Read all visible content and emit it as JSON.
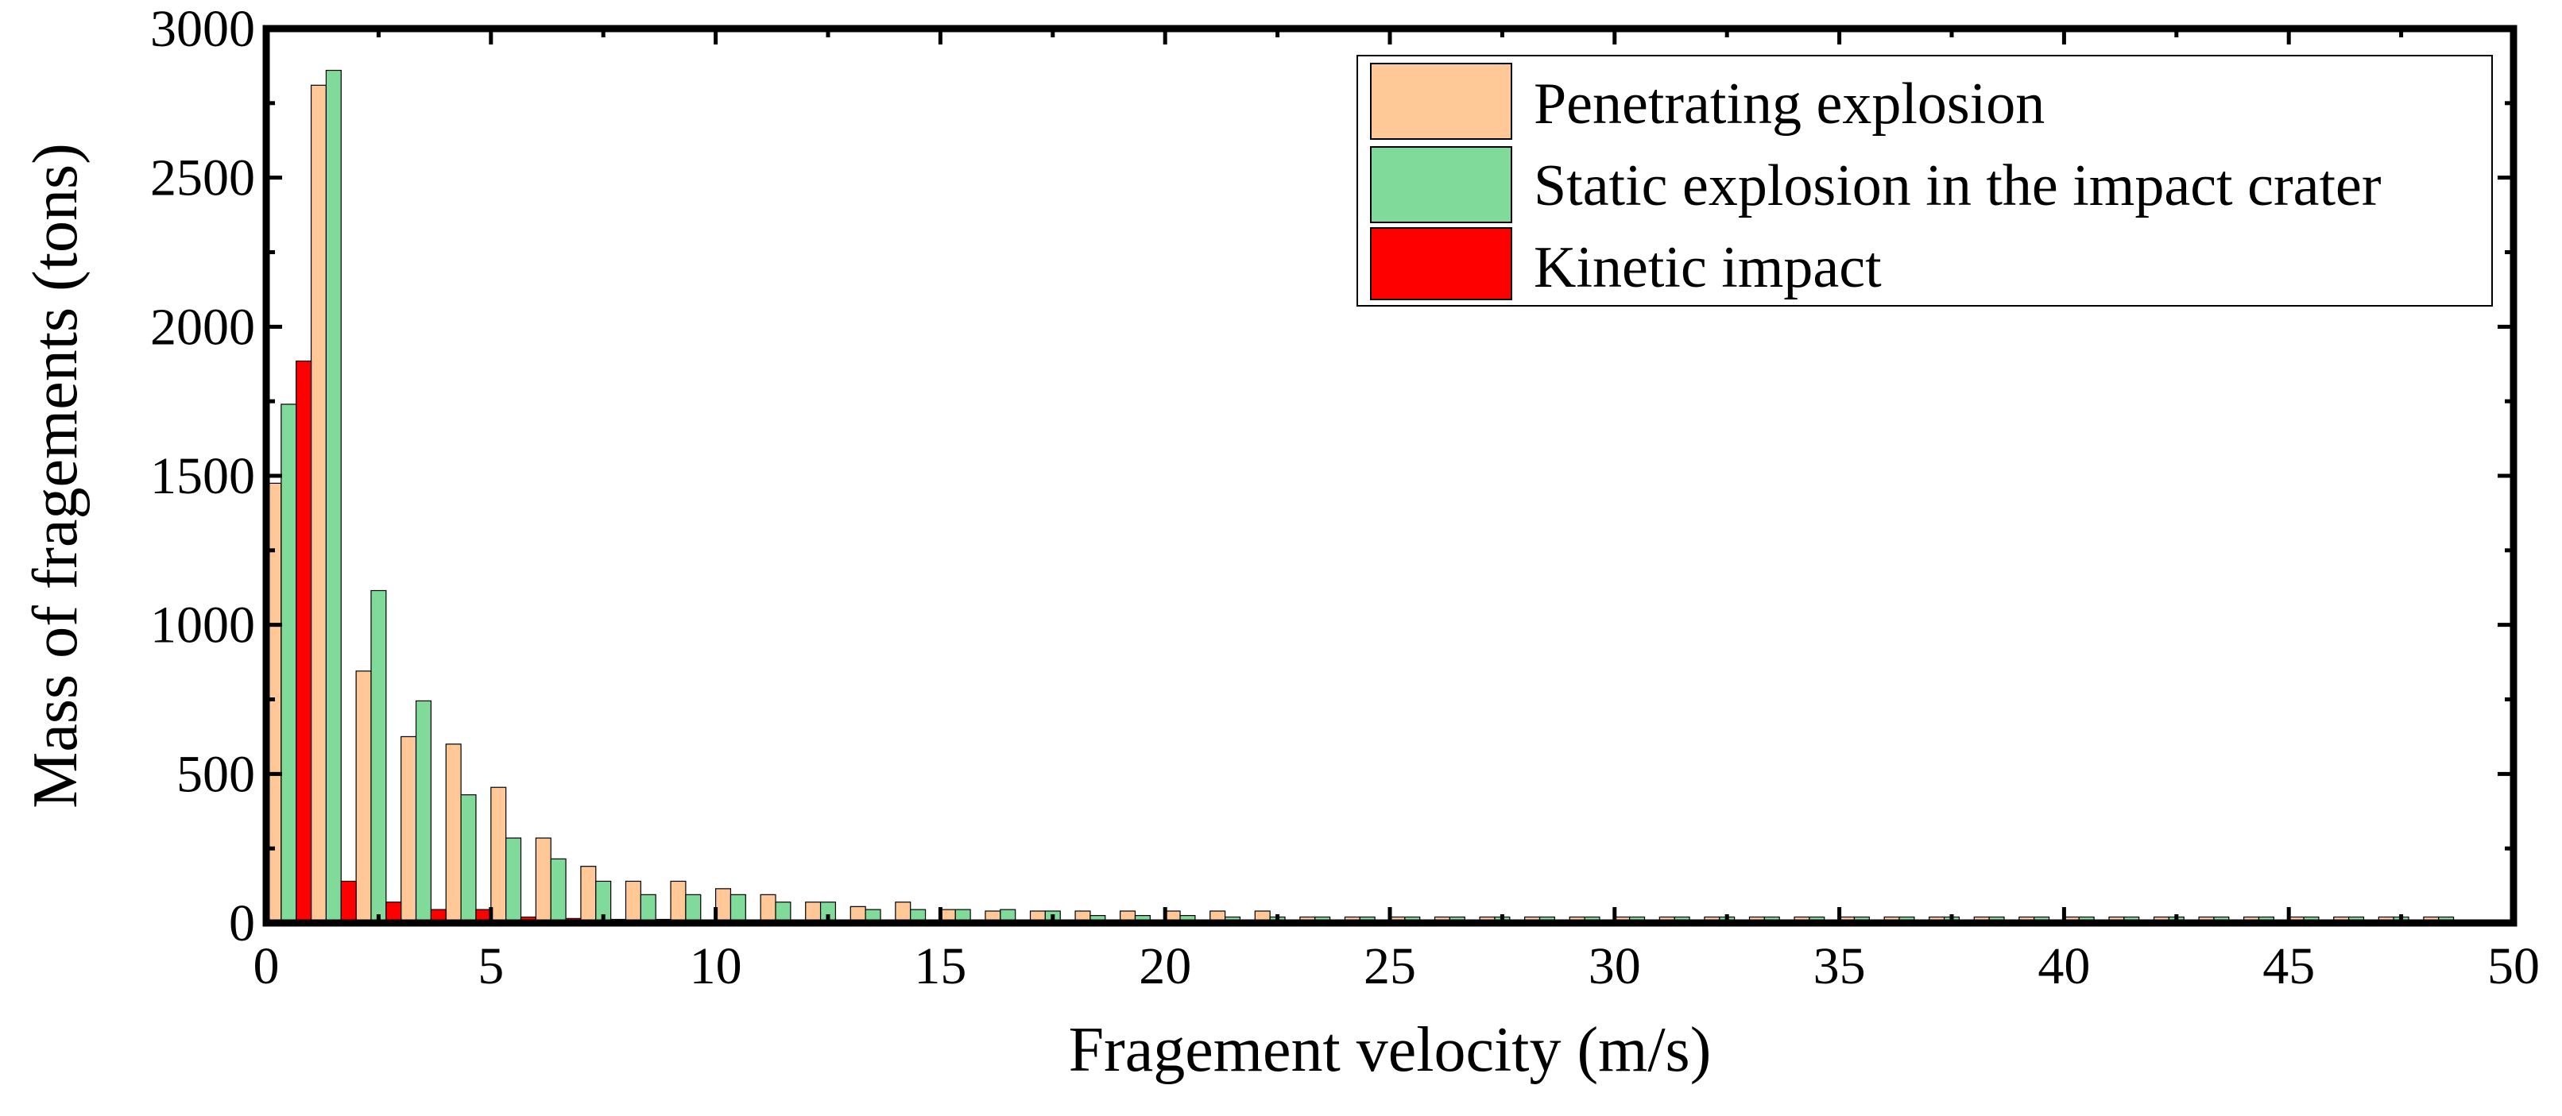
{
  "chart_data": {
    "type": "bar",
    "xlabel": "Fragement velocity (m/s)",
    "ylabel": "Mass of fragements (tons)",
    "xlim": [
      0,
      50
    ],
    "ylim": [
      0,
      3000
    ],
    "x_ticks": [
      "0",
      "5",
      "10",
      "15",
      "20",
      "25",
      "30",
      "35",
      "40",
      "45",
      "50"
    ],
    "y_ticks": [
      "0",
      "500",
      "1000",
      "1500",
      "2000",
      "2500",
      "3000"
    ],
    "grid": false,
    "legend_position": "top-right",
    "bin_width": 1,
    "categories": [
      "0",
      "1",
      "2",
      "3",
      "4",
      "5",
      "6",
      "7",
      "8",
      "9",
      "10",
      "11",
      "12",
      "13",
      "14",
      "15",
      "16",
      "17",
      "18",
      "19",
      "20",
      "21",
      "22",
      "23",
      "24",
      "25",
      "26",
      "27",
      "28",
      "29",
      "30",
      "31",
      "32",
      "33",
      "34",
      "35",
      "36",
      "37",
      "38",
      "39",
      "40",
      "41",
      "42",
      "43",
      "44",
      "45",
      "46",
      "47",
      "48"
    ],
    "series": [
      {
        "name": "Penetrating explosion",
        "color": "#FFC896",
        "values": [
          1475,
          2810,
          845,
          625,
          600,
          455,
          285,
          190,
          140,
          140,
          115,
          95,
          70,
          55,
          70,
          45,
          40,
          40,
          40,
          40,
          40,
          40,
          40,
          20,
          20,
          20,
          20,
          20,
          20,
          20,
          20,
          20,
          20,
          20,
          20,
          20,
          20,
          20,
          20,
          20,
          20,
          20,
          20,
          20,
          20,
          20,
          20,
          20,
          20
        ]
      },
      {
        "name": "Static explosion in the impact crater",
        "color": "#80DA9A",
        "values": [
          1740,
          2860,
          1115,
          745,
          430,
          285,
          215,
          140,
          95,
          95,
          95,
          70,
          70,
          45,
          45,
          45,
          45,
          40,
          25,
          25,
          25,
          20,
          20,
          20,
          20,
          20,
          20,
          20,
          20,
          20,
          20,
          20,
          20,
          20,
          20,
          20,
          20,
          20,
          20,
          20,
          20,
          20,
          20,
          20,
          20,
          20,
          20,
          20,
          20
        ]
      },
      {
        "name": "Kinetic impact",
        "color": "#FF0000",
        "values": [
          1885,
          140,
          70,
          45,
          45,
          20,
          15,
          12,
          12,
          10,
          10,
          10,
          10,
          8,
          8,
          8,
          8,
          6,
          6,
          6,
          6,
          5,
          5,
          5,
          5,
          5,
          5,
          5,
          5,
          5,
          5,
          5,
          5,
          5,
          5,
          5,
          5,
          5,
          5,
          5,
          5,
          5,
          5,
          5,
          5,
          5,
          5,
          5,
          5
        ]
      }
    ]
  }
}
